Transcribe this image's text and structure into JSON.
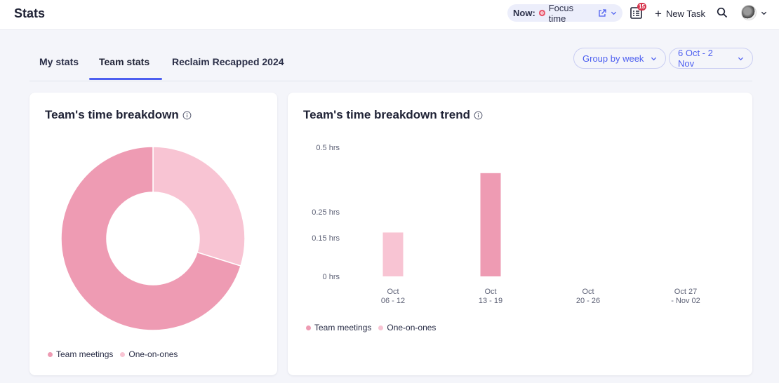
{
  "header": {
    "title": "Stats",
    "now_label": "Now:",
    "now_activity": "Focus time",
    "calendar_badge": "15",
    "new_task_label": "New Task"
  },
  "tabs": [
    {
      "label": "My stats"
    },
    {
      "label": "Team stats"
    },
    {
      "label": "Reclaim Recapped 2024"
    }
  ],
  "filters": {
    "group_by": "Group by week",
    "date_range": "6 Oct - 2 Nov"
  },
  "colors": {
    "team_meetings": "#ee9bb3",
    "one_on_ones": "#f8c4d3",
    "accent": "#4d5ff0"
  },
  "donut_card": {
    "title": "Team's time breakdown",
    "legend": [
      "Team meetings",
      "One-on-ones"
    ]
  },
  "trend_card": {
    "title": "Team's time breakdown trend",
    "legend": [
      "Team meetings",
      "One-on-ones"
    ]
  },
  "chart_data": [
    {
      "type": "pie",
      "title": "Team's time breakdown",
      "labels": [
        "Team meetings",
        "One-on-ones"
      ],
      "values": [
        0.4,
        0.17
      ],
      "donut": true
    },
    {
      "type": "bar",
      "title": "Team's time breakdown trend",
      "categories": [
        [
          "Oct",
          "06 - 12"
        ],
        [
          "Oct",
          "13 - 19"
        ],
        [
          "Oct",
          "20 - 26"
        ],
        [
          "Oct 27",
          "- Nov 02"
        ]
      ],
      "series": [
        {
          "name": "Team meetings",
          "values": [
            0,
            0.4,
            0,
            0
          ]
        },
        {
          "name": "One-on-ones",
          "values": [
            0.17,
            0,
            0,
            0
          ]
        }
      ],
      "yticks": [
        0,
        0.15,
        0.25,
        0.5
      ],
      "ytick_labels": [
        "0 hrs",
        "0.15 hrs",
        "0.25 hrs",
        "0.5 hrs"
      ],
      "ylim": [
        0,
        0.5
      ]
    }
  ]
}
